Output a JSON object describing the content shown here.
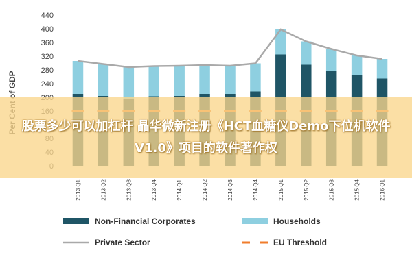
{
  "chart_data": {
    "type": "bar",
    "title": "",
    "xlabel": "",
    "ylabel": "Per Cent of GDP",
    "ylim": [
      0,
      440
    ],
    "yticks": [
      0,
      40,
      80,
      120,
      160,
      200,
      240,
      280,
      320,
      360,
      400,
      440
    ],
    "categories": [
      "2013 Q1",
      "2013 Q2",
      "2013 Q3",
      "2013 Q4",
      "2014 Q1",
      "2014 Q2",
      "2014 Q3",
      "2014 Q4",
      "2015 Q1",
      "2015 Q2",
      "2015 Q3",
      "2015 Q4",
      "2016 Q1"
    ],
    "stacked": true,
    "series": [
      {
        "name": "Non-Financial Corporates",
        "type": "bar",
        "color": "#1f5566",
        "values": [
          210,
          204,
          196,
          203,
          204,
          210,
          210,
          217,
          325,
          295,
          277,
          265,
          255
        ]
      },
      {
        "name": "Households",
        "type": "bar",
        "color": "#8ecfe0",
        "values": [
          96,
          93,
          92,
          88,
          88,
          84,
          82,
          82,
          73,
          68,
          64,
          57,
          57
        ]
      },
      {
        "name": "Private Sector",
        "type": "line",
        "color": "#a9a9a9",
        "values": [
          306,
          297,
          288,
          291,
          292,
          294,
          292,
          299,
          398,
          363,
          341,
          322,
          312
        ]
      },
      {
        "name": "EU Threshold",
        "type": "line",
        "style": "dashed",
        "color": "#f07d2c",
        "values": [
          160,
          160,
          160,
          160,
          160,
          160,
          160,
          160,
          160,
          160,
          160,
          160,
          160
        ]
      }
    ],
    "legend": {
      "position": "bottom",
      "columns": 2
    },
    "grid": false
  },
  "banner": {
    "text": "股票多少可以加杠杆 晶华微新注册《HCT血糖仪Demo下位机软件V1.0》项目的软件著作权",
    "background": "#fad68c"
  }
}
